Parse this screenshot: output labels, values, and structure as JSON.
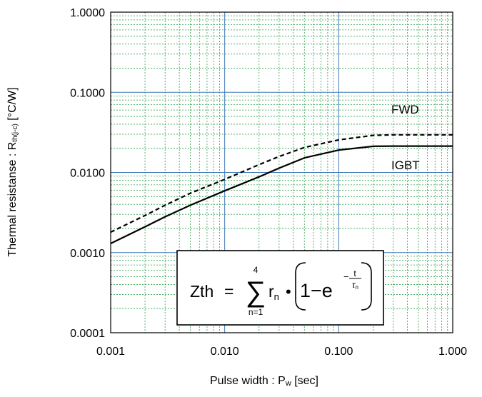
{
  "chart_data": {
    "type": "line",
    "x_scale": "log",
    "y_scale": "log",
    "xlim": [
      0.001,
      1.0
    ],
    "ylim": [
      0.0001,
      1.0
    ],
    "grid": true,
    "x_ticks": [
      "0.001",
      "0.010",
      "0.100",
      "1.000"
    ],
    "y_ticks": [
      "1.0000",
      "0.1000",
      "0.0100",
      "0.0010",
      "0.0001"
    ],
    "xlabel": {
      "main": "Pulse width : P",
      "sub": "w",
      "unit": " [sec]"
    },
    "ylabel": {
      "main": "Thermal resistanse : R",
      "sub": "th(j-c)",
      "unit": " [°C/W]"
    },
    "series": [
      {
        "name": "FWD",
        "style": "dashed",
        "color": "#000000",
        "x": [
          0.001,
          0.002,
          0.003,
          0.005,
          0.01,
          0.02,
          0.03,
          0.05,
          0.1,
          0.2,
          0.3,
          0.5,
          1.0
        ],
        "y": [
          0.0018,
          0.0029,
          0.0039,
          0.0055,
          0.0082,
          0.0125,
          0.0158,
          0.0205,
          0.0255,
          0.029,
          0.0295,
          0.0295,
          0.0295
        ]
      },
      {
        "name": "IGBT",
        "style": "solid",
        "color": "#000000",
        "x": [
          0.001,
          0.002,
          0.003,
          0.005,
          0.01,
          0.02,
          0.03,
          0.05,
          0.1,
          0.2,
          0.3,
          0.5,
          1.0
        ],
        "y": [
          0.0013,
          0.0021,
          0.0028,
          0.0039,
          0.0059,
          0.0088,
          0.0113,
          0.0152,
          0.019,
          0.0212,
          0.0213,
          0.0213,
          0.0213
        ]
      }
    ],
    "annotation": {
      "lhs": "Zth",
      "eq": "=",
      "sum_top": "4",
      "sum_bottom": "n=1",
      "r": "r",
      "r_sub": "n",
      "dot": "•",
      "one_minus_e": "1−e",
      "exp_neg": "−",
      "exp_num": "t",
      "exp_den": "τ",
      "exp_den_sub": "n"
    }
  }
}
